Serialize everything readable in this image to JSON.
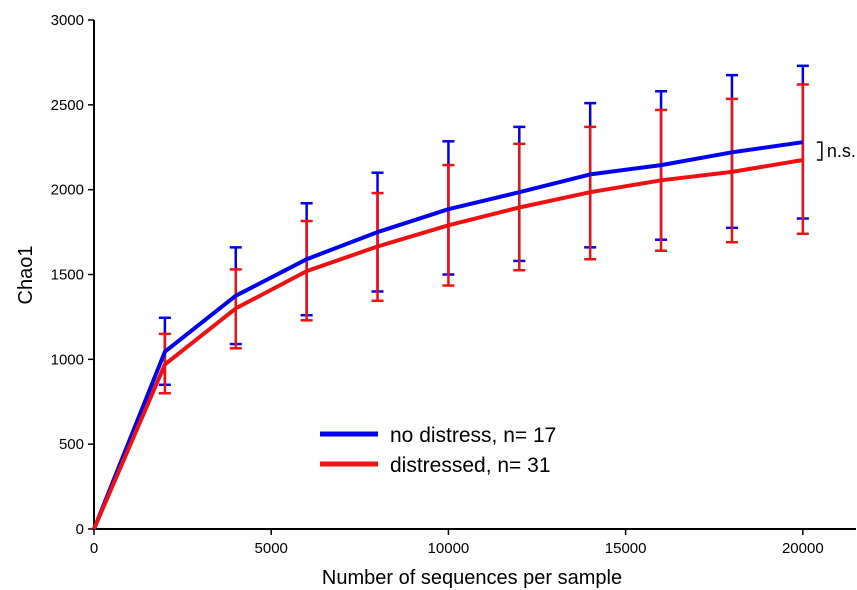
{
  "chart_data": {
    "type": "line",
    "title": "",
    "xlabel": "Number of sequences per sample",
    "ylabel": "Chao1",
    "xlim": [
      0,
      21500
    ],
    "ylim": [
      0,
      3000
    ],
    "x_ticks": [
      0,
      5000,
      10000,
      15000,
      20000
    ],
    "y_ticks": [
      0,
      500,
      1000,
      1500,
      2000,
      2500,
      3000
    ],
    "grid": false,
    "legend_position": "center-bottom",
    "x": [
      0,
      2000,
      4000,
      6000,
      8000,
      10000,
      12000,
      14000,
      16000,
      18000,
      20000
    ],
    "series": [
      {
        "name": "no distress, n= 17",
        "color": "#0000ee",
        "values": [
          0,
          1045,
          1375,
          1590,
          1750,
          1885,
          1985,
          2090,
          2145,
          2220,
          2280
        ],
        "err_low": [
          null,
          850,
          1090,
          1260,
          1400,
          1500,
          1580,
          1660,
          1705,
          1775,
          1830
        ],
        "err_high": [
          null,
          1245,
          1660,
          1920,
          2100,
          2285,
          2370,
          2510,
          2580,
          2675,
          2730
        ]
      },
      {
        "name": "distressed,  n= 31",
        "color": "#ee1111",
        "values": [
          0,
          970,
          1300,
          1520,
          1665,
          1790,
          1895,
          1985,
          2055,
          2105,
          2175
        ],
        "err_low": [
          null,
          800,
          1065,
          1230,
          1345,
          1435,
          1525,
          1590,
          1640,
          1690,
          1740
        ],
        "err_high": [
          null,
          1150,
          1530,
          1815,
          1980,
          2145,
          2270,
          2370,
          2470,
          2535,
          2620
        ]
      }
    ],
    "annotations": [
      {
        "text": "n.s.",
        "x": 20000,
        "y_from": 2175,
        "y_to": 2280
      }
    ]
  }
}
